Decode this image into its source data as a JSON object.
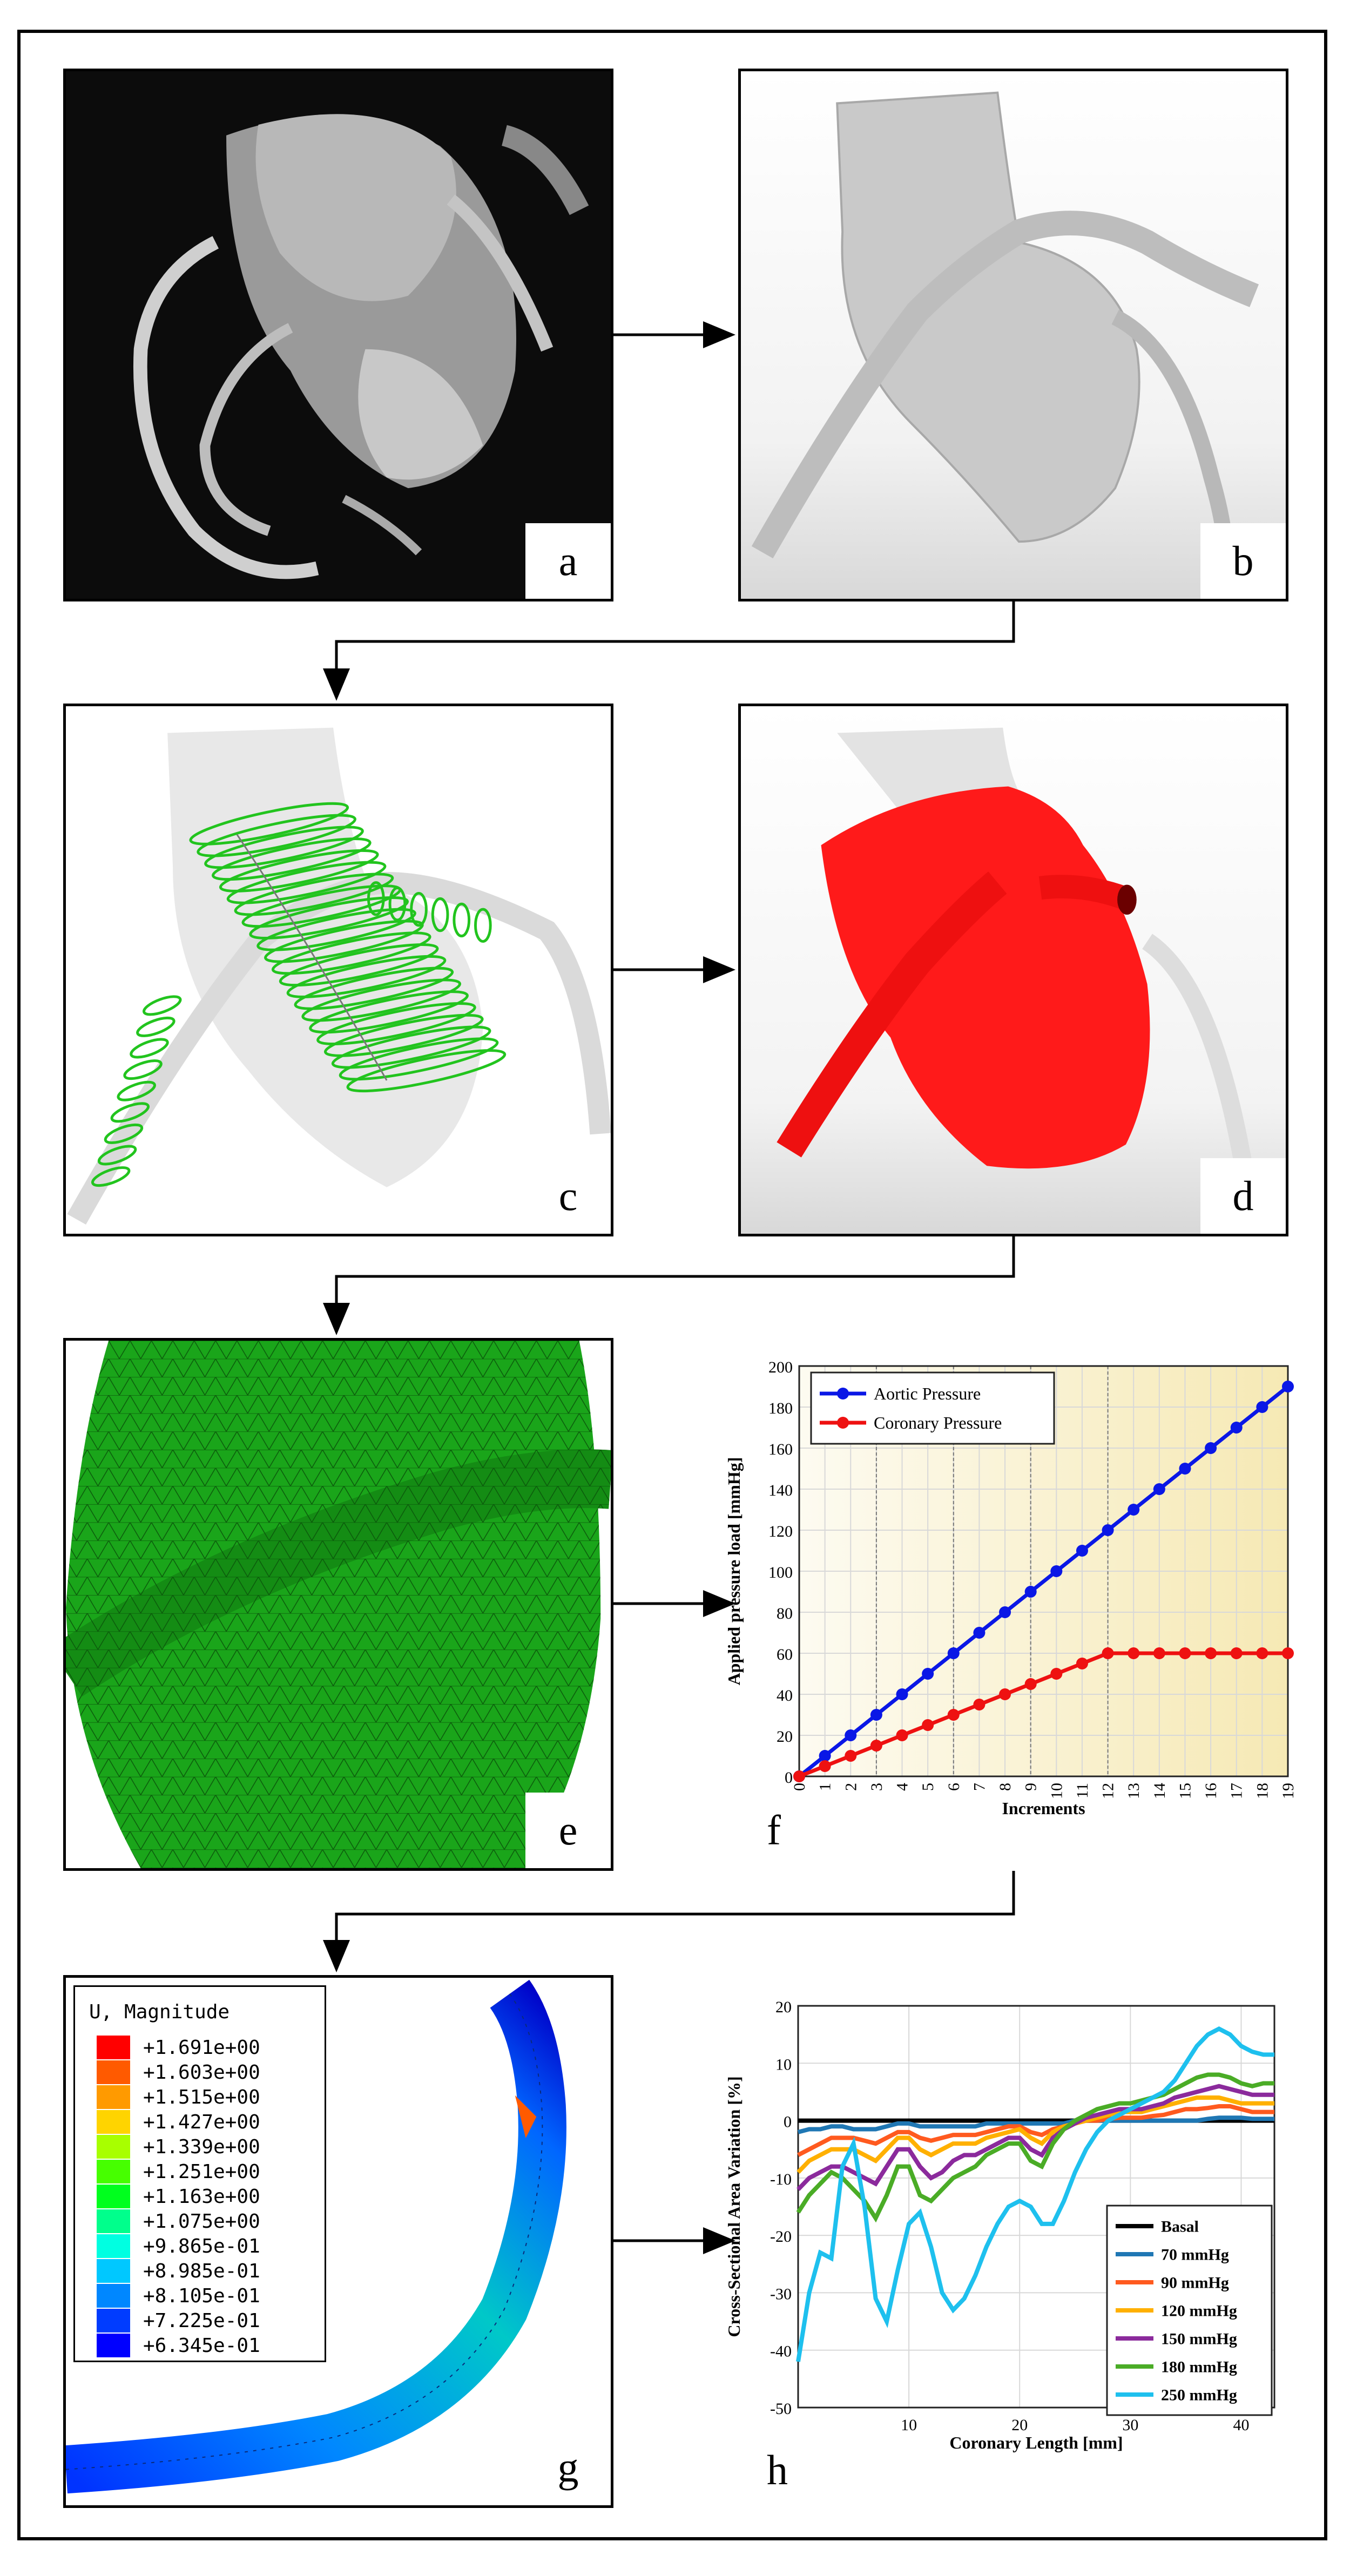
{
  "panels": {
    "a": {
      "label": "a"
    },
    "b": {
      "label": "b"
    },
    "c": {
      "label": "c"
    },
    "d": {
      "label": "d"
    },
    "e": {
      "label": "e"
    },
    "f": {
      "label": "f"
    },
    "g": {
      "label": "g"
    },
    "h": {
      "label": "h"
    }
  },
  "colors": {
    "ct_bg": "#0c0c0c",
    "mesh_gray": "#d2d2d2",
    "ring_green": "#22c41e",
    "surface_red": "#ff1a1a",
    "mesh_green": "#1aa51a",
    "aortic": "#0a17e6",
    "coronary": "#ee1111"
  },
  "legend_g": {
    "title": "U, Magnitude",
    "entries": [
      {
        "value": "+1.691e+00",
        "color": "#ff0000"
      },
      {
        "value": "+1.603e+00",
        "color": "#ff5a00"
      },
      {
        "value": "+1.515e+00",
        "color": "#ff9a00"
      },
      {
        "value": "+1.427e+00",
        "color": "#ffd400"
      },
      {
        "value": "+1.339e+00",
        "color": "#a8ff00"
      },
      {
        "value": "+1.251e+00",
        "color": "#46ff00"
      },
      {
        "value": "+1.163e+00",
        "color": "#00ff1e"
      },
      {
        "value": "+1.075e+00",
        "color": "#00ff8c"
      },
      {
        "value": "+9.865e-01",
        "color": "#00ffe1"
      },
      {
        "value": "+8.985e-01",
        "color": "#00c8ff"
      },
      {
        "value": "+8.105e-01",
        "color": "#0087ff"
      },
      {
        "value": "+7.225e-01",
        "color": "#003cff"
      },
      {
        "value": "+6.345e-01",
        "color": "#0000ff"
      }
    ]
  },
  "chart_data": [
    {
      "type": "line",
      "panel": "f",
      "xlabel": "Increments",
      "ylabel": "Applied pressure load [mmHg]",
      "xlim": [
        0,
        19
      ],
      "ylim": [
        0,
        200
      ],
      "x": [
        0,
        1,
        2,
        3,
        4,
        5,
        6,
        7,
        8,
        9,
        10,
        11,
        12,
        13,
        14,
        15,
        16,
        17,
        18,
        19
      ],
      "xticks": [
        "0",
        "1",
        "2",
        "3",
        "4",
        "5",
        "6",
        "7",
        "8",
        "9",
        "10",
        "11",
        "12",
        "13",
        "14",
        "15",
        "16",
        "17",
        "18",
        "19"
      ],
      "yticks": [
        "0",
        "20",
        "40",
        "60",
        "80",
        "100",
        "120",
        "140",
        "160",
        "180",
        "200"
      ],
      "vlines": [
        3,
        6,
        9,
        12
      ],
      "legend_position": "top-left",
      "series": [
        {
          "name": "Aortic Pressure",
          "color": "#0a17e6",
          "values": [
            0,
            10,
            20,
            30,
            40,
            50,
            60,
            70,
            80,
            90,
            100,
            110,
            120,
            130,
            140,
            150,
            160,
            170,
            180,
            190
          ]
        },
        {
          "name": "Coronary Pressure",
          "color": "#ee1111",
          "values": [
            0,
            5,
            10,
            15,
            20,
            25,
            30,
            35,
            40,
            45,
            50,
            55,
            60,
            60,
            60,
            60,
            60,
            60,
            60,
            60
          ]
        }
      ]
    },
    {
      "type": "line",
      "panel": "h",
      "xlabel": "Coronary Length [mm]",
      "ylabel": "Cross-Sectional Area Variation [%]",
      "xlim": [
        0,
        43
      ],
      "ylim": [
        -50,
        20
      ],
      "xticks": [
        "10",
        "20",
        "30",
        "40"
      ],
      "yticks": [
        "-50",
        "-40",
        "-30",
        "-20",
        "-10",
        "0",
        "10",
        "20"
      ],
      "legend_position": "bottom-right",
      "x": [
        0,
        1,
        2,
        3,
        4,
        5,
        6,
        7,
        8,
        9,
        10,
        11,
        12,
        13,
        14,
        15,
        16,
        17,
        18,
        19,
        20,
        21,
        22,
        23,
        24,
        25,
        26,
        27,
        28,
        29,
        30,
        31,
        32,
        33,
        34,
        35,
        36,
        37,
        38,
        39,
        40,
        41,
        42,
        43
      ],
      "series": [
        {
          "name": "Basal",
          "color": "#000000",
          "values": [
            0,
            0,
            0,
            0,
            0,
            0,
            0,
            0,
            0,
            0,
            0,
            0,
            0,
            0,
            0,
            0,
            0,
            0,
            0,
            0,
            0,
            0,
            0,
            0,
            0,
            0,
            0,
            0,
            0,
            0,
            0,
            0,
            0,
            0,
            0,
            0,
            0,
            0,
            0,
            0,
            0,
            0,
            0,
            0
          ]
        },
        {
          "name": "70 mmHg",
          "color": "#1f77b4",
          "values": [
            -2,
            -1.5,
            -1.5,
            -1,
            -1,
            -1.5,
            -1.5,
            -1.5,
            -1,
            -0.5,
            -0.5,
            -1,
            -1,
            -1,
            -1,
            -1,
            -1,
            -0.5,
            -0.5,
            -0.5,
            -0.5,
            -0.5,
            -0.5,
            -0.5,
            -0.5,
            0,
            0,
            0,
            0,
            0,
            0,
            0,
            0,
            0,
            0,
            0,
            0,
            0.3,
            0.5,
            0.5,
            0.5,
            0.3,
            0.3,
            0.3
          ]
        },
        {
          "name": "90 mmHg",
          "color": "#ff5a1f",
          "values": [
            -6,
            -5,
            -4,
            -3,
            -3,
            -3,
            -3.5,
            -4,
            -3,
            -2,
            -2,
            -3,
            -3.5,
            -3,
            -2.5,
            -2.5,
            -2.5,
            -2,
            -1.5,
            -1,
            -1,
            -2,
            -2.5,
            -1.5,
            -1,
            -0.5,
            0,
            0,
            0.3,
            0.5,
            0.5,
            0.5,
            0.8,
            1,
            1.5,
            2,
            2,
            2.2,
            2.5,
            2.5,
            2,
            1.5,
            1.5,
            1.5
          ]
        },
        {
          "name": "120 mmHg",
          "color": "#ffb000",
          "values": [
            -9,
            -7,
            -6,
            -5,
            -5,
            -5,
            -6,
            -7,
            -5,
            -3,
            -3,
            -5,
            -6,
            -5,
            -4,
            -4,
            -4,
            -3,
            -2.5,
            -2,
            -1.5,
            -3,
            -4,
            -2,
            -1,
            -0.5,
            0,
            0.5,
            1,
            1.5,
            1.5,
            1.5,
            2,
            2.5,
            3,
            3.5,
            4,
            4,
            4,
            3.5,
            3,
            3,
            3,
            3
          ]
        },
        {
          "name": "150 mmHg",
          "color": "#8b2a9c",
          "values": [
            -12,
            -10,
            -9,
            -8,
            -8,
            -9,
            -10,
            -11,
            -8,
            -5,
            -5,
            -8,
            -10,
            -9,
            -7,
            -6,
            -6,
            -5,
            -4,
            -3,
            -3,
            -5,
            -6,
            -3,
            -1.5,
            -0.5,
            0.5,
            1,
            1.5,
            2,
            2,
            2,
            2.5,
            3,
            4,
            4.5,
            5,
            5.5,
            6,
            5.5,
            5,
            4.5,
            4.5,
            4.5
          ]
        },
        {
          "name": "180 mmHg",
          "color": "#4aac26",
          "values": [
            -16,
            -13,
            -11,
            -9,
            -10,
            -12,
            -14,
            -17,
            -13,
            -8,
            -8,
            -13,
            -14,
            -12,
            -10,
            -9,
            -8,
            -6,
            -5,
            -4,
            -4,
            -7,
            -8,
            -4,
            -1.5,
            0,
            1,
            2,
            2.5,
            3,
            3,
            3.5,
            4,
            4.5,
            5.5,
            6.5,
            7.5,
            8,
            8,
            7.5,
            6.5,
            6,
            6.5,
            6.5
          ]
        },
        {
          "name": "250 mmHg",
          "color": "#1ec0ee",
          "values": [
            -42,
            -30,
            -23,
            -24,
            -8,
            -4,
            -15,
            -31,
            -35,
            -26,
            -18,
            -16,
            -22,
            -30,
            -33,
            -31,
            -27,
            -22,
            -18,
            -15,
            -14,
            -15,
            -18,
            -18,
            -14,
            -9,
            -5,
            -2,
            0,
            1,
            2,
            3,
            4,
            5,
            7,
            10,
            13,
            15,
            16,
            15,
            13,
            12,
            11.5,
            11.5
          ]
        }
      ]
    }
  ]
}
